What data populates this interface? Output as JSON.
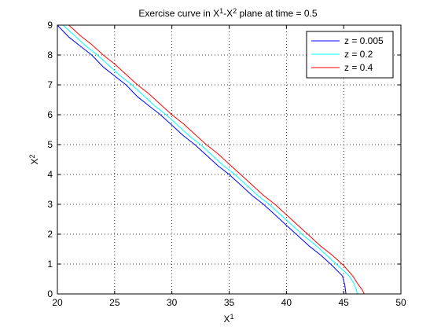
{
  "chart_data": {
    "type": "line",
    "title": {
      "t1": "Exercise curve in X",
      "s1": "1",
      "t2": "-X",
      "s2": "2",
      "t3": " plane at time = 0.5"
    },
    "xlabel": {
      "base": "X",
      "sup": "1"
    },
    "ylabel": {
      "base": "X",
      "sup": "2"
    },
    "xlim": [
      20,
      50
    ],
    "ylim": [
      0,
      9
    ],
    "xticks": [
      20,
      25,
      30,
      35,
      40,
      45,
      50
    ],
    "yticks": [
      0,
      1,
      2,
      3,
      4,
      5,
      6,
      7,
      8,
      9
    ],
    "grid": true,
    "legend_position": "top-right",
    "series": [
      {
        "name": "z = 0.005",
        "color": "#0000ff",
        "x": [
          20.0,
          21.0,
          22.0,
          23.0,
          24.0,
          25.0,
          26.0,
          27.0,
          28.0,
          29.0,
          30.0,
          31.0,
          32.0,
          33.0,
          34.0,
          35.0,
          36.0,
          37.0,
          38.0,
          39.0,
          40.0,
          41.0,
          42.0,
          43.0,
          44.0,
          44.9,
          45.1,
          45.2
        ],
        "y": [
          9.0,
          8.6,
          8.3,
          8.0,
          7.6,
          7.3,
          7.0,
          6.6,
          6.3,
          6.0,
          5.65,
          5.3,
          5.0,
          4.65,
          4.3,
          4.0,
          3.65,
          3.3,
          3.0,
          2.65,
          2.3,
          1.95,
          1.6,
          1.3,
          0.95,
          0.6,
          0.3,
          0.0
        ]
      },
      {
        "name": "z = 0.2",
        "color": "#00ffff",
        "x": [
          20.5,
          21.5,
          22.5,
          23.5,
          24.5,
          25.5,
          26.5,
          27.5,
          28.5,
          29.5,
          30.5,
          31.5,
          32.5,
          33.5,
          34.5,
          35.5,
          36.5,
          37.5,
          38.5,
          39.5,
          40.5,
          41.5,
          42.5,
          43.5,
          44.5,
          45.5,
          45.9,
          46.1,
          46.2
        ],
        "y": [
          9.0,
          8.65,
          8.3,
          8.0,
          7.65,
          7.3,
          7.0,
          6.65,
          6.3,
          6.0,
          5.65,
          5.3,
          5.0,
          4.65,
          4.3,
          4.0,
          3.65,
          3.3,
          3.0,
          2.65,
          2.3,
          1.95,
          1.65,
          1.3,
          0.95,
          0.6,
          0.35,
          0.15,
          0.0
        ]
      },
      {
        "name": "z = 0.4",
        "color": "#ff0000",
        "x": [
          21.0,
          22.0,
          23.0,
          24.0,
          25.0,
          26.0,
          27.0,
          28.0,
          29.0,
          30.0,
          31.0,
          32.0,
          33.0,
          34.0,
          35.0,
          36.0,
          37.0,
          38.0,
          39.0,
          40.0,
          41.0,
          42.0,
          43.0,
          44.0,
          45.0,
          45.8,
          46.3,
          46.6,
          46.8
        ],
        "y": [
          9.0,
          8.65,
          8.35,
          8.0,
          7.7,
          7.35,
          7.0,
          6.7,
          6.35,
          6.0,
          5.7,
          5.35,
          5.0,
          4.7,
          4.35,
          4.0,
          3.65,
          3.3,
          3.0,
          2.65,
          2.3,
          1.95,
          1.6,
          1.3,
          0.95,
          0.6,
          0.3,
          0.15,
          0.0
        ]
      }
    ]
  }
}
